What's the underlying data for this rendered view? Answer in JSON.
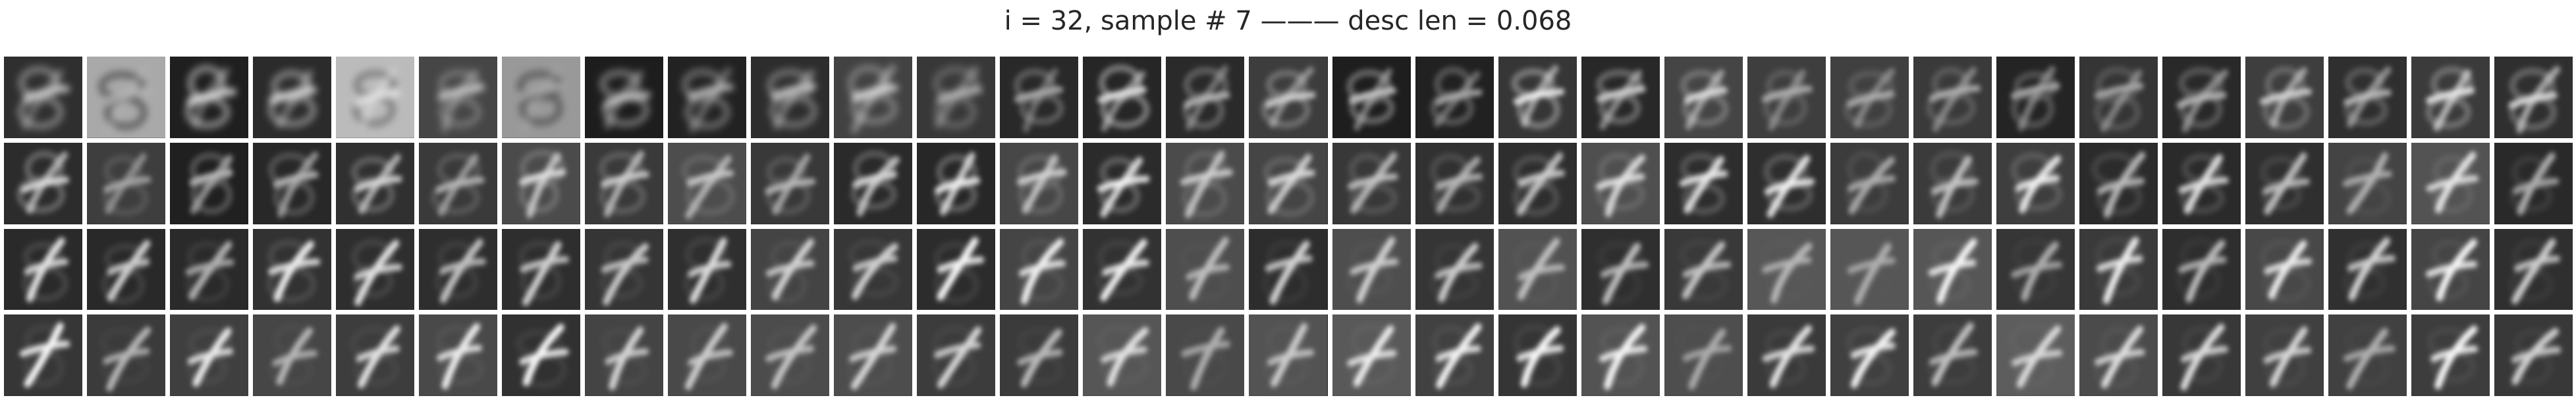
{
  "figure": {
    "title": "i = 32, sample # 7 ——— desc len = 0.068"
  },
  "grid": {
    "rows": 4,
    "cols": 31,
    "cell_kind": "grayscale digit reconstruction"
  },
  "colors": {
    "background": "#ffffff",
    "title_text": "#262626"
  }
}
